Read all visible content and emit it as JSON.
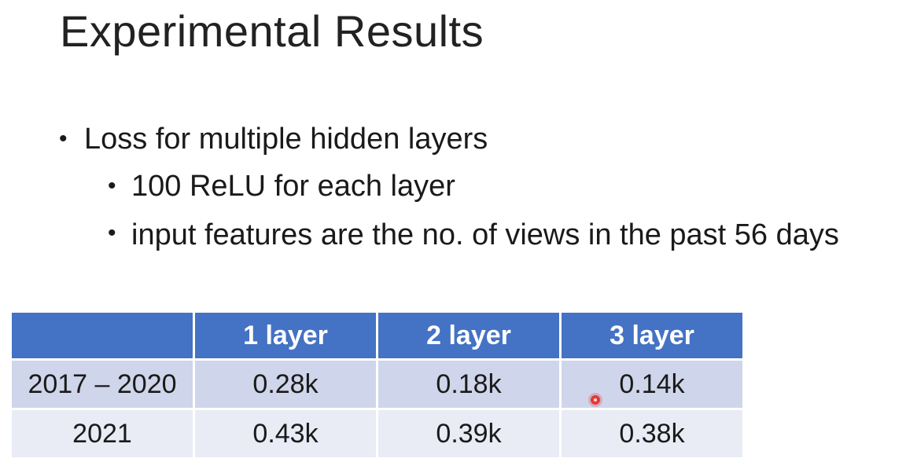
{
  "slide": {
    "title": "Experimental Results",
    "bullets": [
      {
        "text": "Loss for multiple hidden layers",
        "level": 1
      },
      {
        "text": "100 ReLU for each layer",
        "level": 2
      },
      {
        "text": "input features are the no. of views in the past 56 days",
        "level": 2
      }
    ]
  },
  "table": {
    "headers": [
      "",
      "1 layer",
      "2 layer",
      "3 layer"
    ],
    "rows": [
      [
        "2017 – 2020",
        "0.28k",
        "0.18k",
        "0.14k"
      ],
      [
        "2021",
        "0.43k",
        "0.39k",
        "0.38k"
      ]
    ]
  },
  "colors": {
    "header_bg": "#4472c4",
    "row1_bg": "#cfd5ea",
    "row2_bg": "#e9ebf5",
    "pointer": "#e53935"
  }
}
